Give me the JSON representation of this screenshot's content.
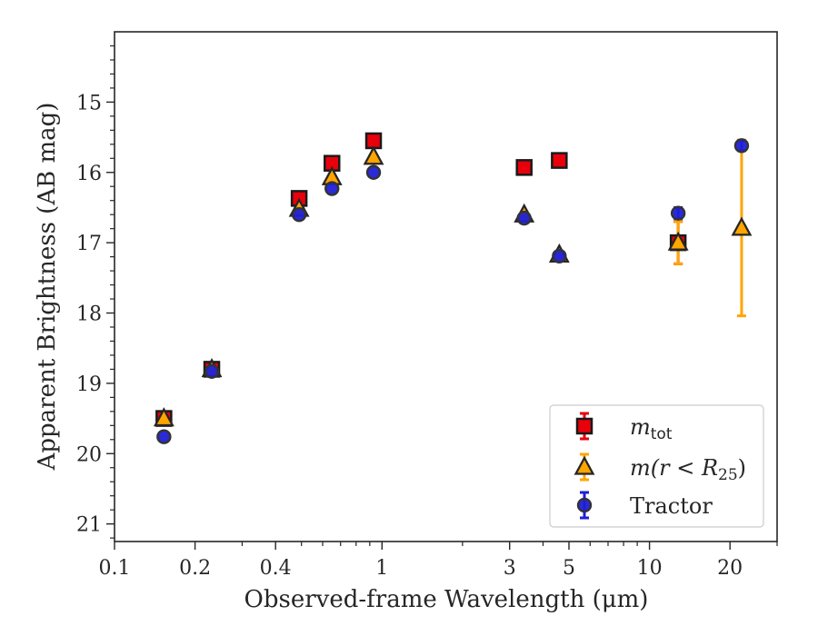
{
  "chart_data": {
    "type": "scatter",
    "xlabel": "Observed-frame Wavelength (μm)",
    "ylabel": "Apparent Brightness (AB mag)",
    "xscale": "log",
    "xlim": [
      0.1,
      30
    ],
    "ylim": [
      21.25,
      14.0
    ],
    "y_inverted": true,
    "x_ticks": [
      0.1,
      0.2,
      0.4,
      1,
      3,
      5,
      10,
      20
    ],
    "x_tick_labels": [
      "0.1",
      "0.2",
      "0.4",
      "1",
      "3",
      "5",
      "10",
      "20"
    ],
    "y_ticks": [
      15,
      16,
      17,
      18,
      19,
      20,
      21
    ],
    "y_tick_labels": [
      "15",
      "16",
      "17",
      "18",
      "19",
      "20",
      "21"
    ],
    "grid": false,
    "legend_position": "bottom-right",
    "legend": [
      {
        "series": "mtot",
        "base": "m",
        "sub": "tot",
        "italic_base": true
      },
      {
        "series": "mr25",
        "text": "m(r < R",
        "sub": "25",
        "suffix": ")",
        "italic": true
      },
      {
        "series": "tractor",
        "text": "Tractor"
      }
    ],
    "series": [
      {
        "id": "mtot",
        "marker": "square",
        "color": "#e8000b",
        "edge": "#1a1a1a",
        "errcolor": "#e8000b",
        "points": [
          {
            "x": 0.153,
            "y": 19.5
          },
          {
            "x": 0.231,
            "y": 18.8
          },
          {
            "x": 0.49,
            "y": 16.37
          },
          {
            "x": 0.65,
            "y": 15.87
          },
          {
            "x": 0.93,
            "y": 15.55
          },
          {
            "x": 3.4,
            "y": 15.93
          },
          {
            "x": 4.6,
            "y": 15.83
          },
          {
            "x": 12.8,
            "y": 17.0,
            "err": 0.3
          }
        ]
      },
      {
        "id": "mr25",
        "marker": "triangle",
        "color": "#ffa500",
        "edge": "#262626",
        "errcolor": "#ffa500",
        "points": [
          {
            "x": 0.153,
            "y": 19.5
          },
          {
            "x": 0.231,
            "y": 18.8
          },
          {
            "x": 0.49,
            "y": 16.52
          },
          {
            "x": 0.65,
            "y": 16.07
          },
          {
            "x": 0.93,
            "y": 15.78
          },
          {
            "x": 3.4,
            "y": 16.6
          },
          {
            "x": 4.6,
            "y": 17.17
          },
          {
            "x": 12.8,
            "y": 17.0,
            "err": 0.3
          },
          {
            "x": 22.1,
            "y": 16.79,
            "err": 1.25
          }
        ]
      },
      {
        "id": "tractor",
        "marker": "circle",
        "color": "#1f1fd6",
        "edge": "#333333",
        "errcolor": "#1f1fd6",
        "points": [
          {
            "x": 0.153,
            "y": 19.76
          },
          {
            "x": 0.231,
            "y": 18.83
          },
          {
            "x": 0.49,
            "y": 16.6
          },
          {
            "x": 0.65,
            "y": 16.23
          },
          {
            "x": 0.93,
            "y": 16.0
          },
          {
            "x": 3.4,
            "y": 16.65
          },
          {
            "x": 4.6,
            "y": 17.19
          },
          {
            "x": 12.8,
            "y": 16.58,
            "err": 0.08
          },
          {
            "x": 22.1,
            "y": 15.62,
            "err": 0.07
          }
        ]
      }
    ]
  }
}
